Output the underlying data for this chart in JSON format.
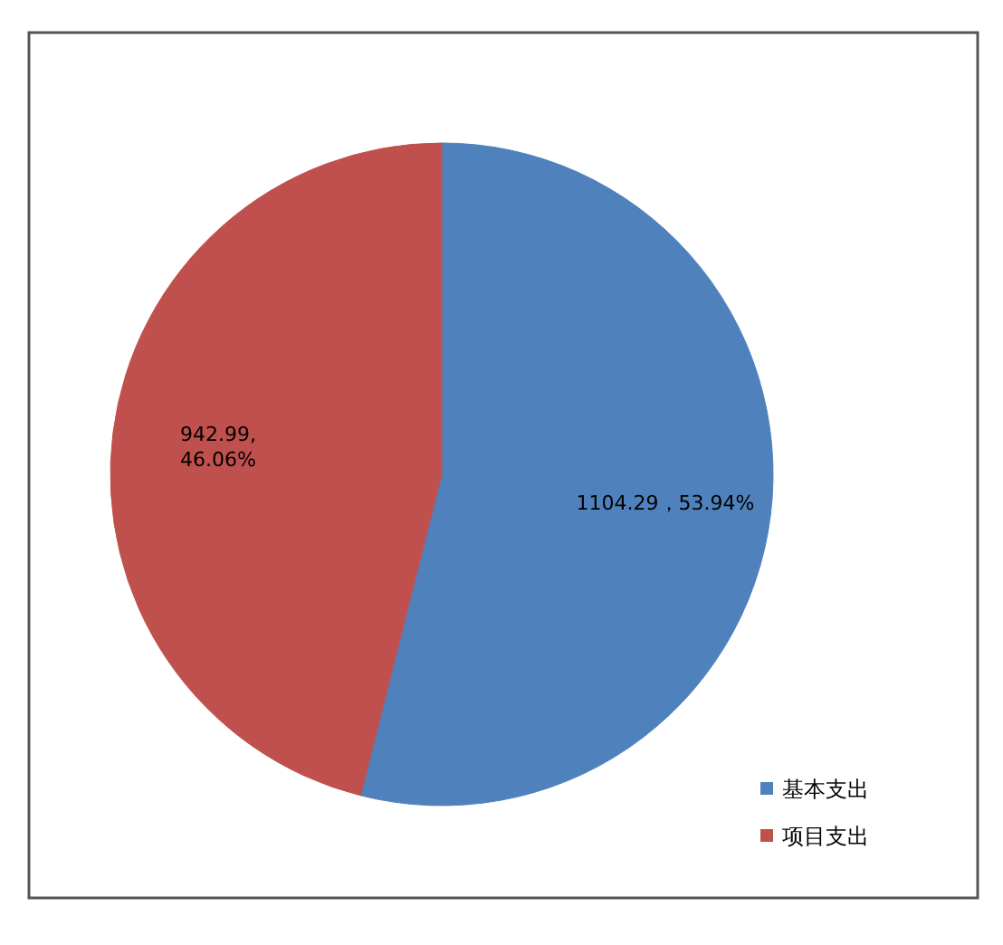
{
  "chart_data": {
    "type": "pie",
    "categories": [
      "基本支出",
      "项目支出"
    ],
    "values": [
      1104.29,
      942.99
    ],
    "colors": [
      "#4f81bd",
      "#c0504d"
    ],
    "value_labels": [
      "1104.29，53.94%",
      "942.99,\n46.06%"
    ],
    "legend": "bottom right"
  }
}
